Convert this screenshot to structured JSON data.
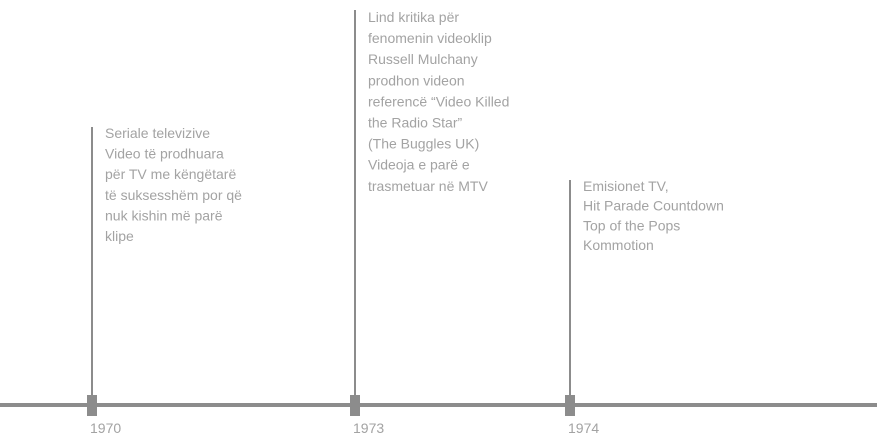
{
  "events": [
    {
      "year": "1970",
      "lines": [
        "Seriale televizive",
        "Video të prodhuara",
        "për TV me këngëtarë",
        "të suksesshëm por që",
        "nuk kishin më parë",
        "klipe"
      ]
    },
    {
      "year": "1973",
      "lines": [
        "Lind kritika për",
        "fenomenin videoklip",
        "Russell Mulchany",
        "prodhon videon",
        "referencë “Video Killed",
        "the Radio Star”",
        "(The Buggles UK)",
        "Videoja e parë e",
        "trasmetuar në MTV"
      ]
    },
    {
      "year": "1974",
      "lines": [
        "Emisionet TV,",
        "Hit Parade Countdown",
        "Top of the Pops",
        "Kommotion"
      ]
    }
  ]
}
